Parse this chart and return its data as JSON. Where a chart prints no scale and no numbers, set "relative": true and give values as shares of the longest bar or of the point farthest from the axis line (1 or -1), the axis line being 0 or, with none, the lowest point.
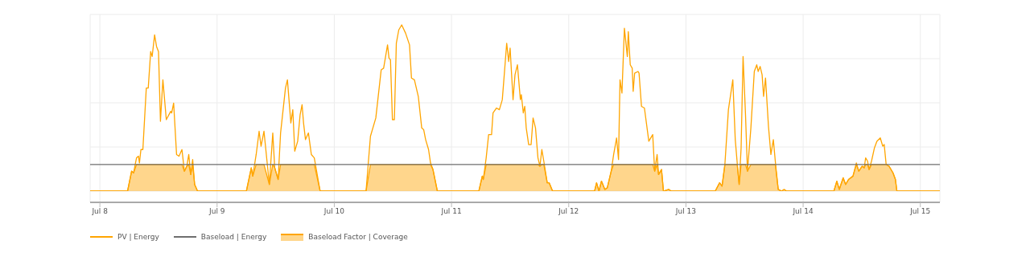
{
  "chart_data": {
    "type": "line",
    "relative": true,
    "grid": true,
    "legend": "bottom left",
    "marker": "none",
    "line_style": "solid",
    "xlim": [
      "--07-07T22:00",
      "--07-15T04:00"
    ],
    "xticks": [
      {
        "value": "--07-08",
        "label": "Jul 8"
      },
      {
        "value": "--07-09",
        "label": "Jul 9"
      },
      {
        "value": "--07-10",
        "label": "Jul 10"
      },
      {
        "value": "--07-11",
        "label": "Jul 11"
      },
      {
        "value": "--07-12",
        "label": "Jul 12"
      },
      {
        "value": "--07-13",
        "label": "Jul 13"
      },
      {
        "value": "--07-14",
        "label": "Jul 14"
      },
      {
        "value": "--07-15",
        "label": "Jul 15"
      }
    ],
    "x": [
      "--07-07T22:00",
      "--07-08T05:40",
      "--07-08T06:30",
      "--07-08T06:54",
      "--07-08T07:30",
      "--07-08T07:54",
      "--07-08T08:06",
      "--07-08T08:24",
      "--07-08T08:48",
      "--07-08T09:30",
      "--07-08T09:54",
      "--07-08T10:24",
      "--07-08T10:42",
      "--07-08T11:12",
      "--07-08T11:36",
      "--07-08T12:00",
      "--07-08T12:24",
      "--07-08T12:54",
      "--07-08T13:36",
      "--07-08T14:30",
      "--07-08T14:42",
      "--07-08T15:06",
      "--07-08T15:42",
      "--07-08T16:12",
      "--07-08T16:48",
      "--07-08T17:18",
      "--07-08T17:48",
      "--07-08T18:12",
      "--07-08T18:36",
      "--07-08T19:00",
      "--07-08T19:24",
      "--07-08T20:00",
      "--07-09T06:00",
      "--07-09T07:00",
      "--07-09T07:18",
      "--07-09T08:00",
      "--07-09T08:36",
      "--07-09T09:00",
      "--07-09T09:36",
      "--07-09T10:42",
      "--07-09T11:24",
      "--07-09T11:48",
      "--07-09T12:30",
      "--07-09T13:00",
      "--07-09T14:00",
      "--07-09T14:24",
      "--07-09T15:06",
      "--07-09T15:30",
      "--07-09T15:54",
      "--07-09T16:30",
      "--07-09T17:00",
      "--07-09T17:24",
      "--07-09T17:42",
      "--07-09T18:06",
      "--07-09T18:42",
      "--07-09T19:18",
      "--07-09T19:54",
      "--07-09T21:06",
      "--07-10T06:30",
      "--07-10T07:24",
      "--07-10T08:30",
      "--07-10T09:36",
      "--07-10T10:06",
      "--07-10T10:54",
      "--07-10T11:12",
      "--07-10T11:30",
      "--07-10T11:54",
      "--07-10T12:18",
      "--07-10T12:42",
      "--07-10T13:12",
      "--07-10T13:48",
      "--07-10T14:36",
      "--07-10T15:24",
      "--07-10T15:48",
      "--07-10T16:24",
      "--07-10T17:12",
      "--07-10T17:54",
      "--07-10T18:18",
      "--07-10T18:42",
      "--07-10T19:18",
      "--07-10T19:42",
      "--07-10T20:12",
      "--07-10T21:06",
      "--07-11T05:36",
      "--07-11T06:18",
      "--07-11T06:30",
      "--07-11T07:06",
      "--07-11T07:36",
      "--07-11T08:12",
      "--07-11T08:30",
      "--07-11T09:12",
      "--07-11T09:48",
      "--07-11T10:24",
      "--07-11T10:48",
      "--07-11T11:18",
      "--07-11T11:42",
      "--07-11T12:00",
      "--07-11T12:36",
      "--07-11T13:00",
      "--07-11T13:30",
      "--07-11T14:06",
      "--07-11T14:18",
      "--07-11T14:42",
      "--07-11T15:00",
      "--07-11T15:18",
      "--07-11T15:48",
      "--07-11T16:18",
      "--07-11T16:42",
      "--07-11T17:12",
      "--07-11T17:42",
      "--07-11T18:06",
      "--07-11T18:30",
      "--07-11T18:54",
      "--07-11T19:36",
      "--07-11T20:00",
      "--07-11T20:42",
      "--07-12T05:18",
      "--07-12T05:42",
      "--07-12T06:12",
      "--07-12T06:42",
      "--07-12T07:24",
      "--07-12T07:54",
      "--07-12T08:42",
      "--07-12T09:12",
      "--07-12T09:48",
      "--07-12T10:12",
      "--07-12T10:30",
      "--07-12T10:54",
      "--07-12T11:24",
      "--07-12T12:00",
      "--07-12T12:12",
      "--07-12T12:36",
      "--07-12T13:00",
      "--07-12T13:12",
      "--07-12T13:30",
      "--07-12T14:12",
      "--07-12T14:24",
      "--07-12T14:54",
      "--07-12T15:30",
      "--07-12T16:24",
      "--07-12T17:12",
      "--07-12T17:36",
      "--07-12T18:06",
      "--07-12T18:24",
      "--07-12T19:00",
      "--07-12T19:24",
      "--07-12T20:30",
      "--07-12T21:00",
      "--07-13T06:00",
      "--07-13T06:54",
      "--07-13T07:24",
      "--07-13T08:00",
      "--07-13T08:42",
      "--07-13T09:06",
      "--07-13T09:36",
      "--07-13T10:06",
      "--07-13T10:30",
      "--07-13T10:54",
      "--07-13T11:18",
      "--07-13T11:42",
      "--07-13T12:12",
      "--07-13T12:36",
      "--07-13T13:18",
      "--07-13T14:00",
      "--07-13T14:30",
      "--07-13T14:48",
      "--07-13T15:12",
      "--07-13T15:36",
      "--07-13T15:54",
      "--07-13T16:18",
      "--07-13T16:54",
      "--07-13T17:24",
      "--07-13T17:54",
      "--07-13T18:18",
      "--07-13T18:54",
      "--07-13T19:36",
      "--07-13T20:06",
      "--07-13T20:36",
      "--07-14T06:18",
      "--07-14T06:54",
      "--07-14T07:24",
      "--07-14T08:12",
      "--07-14T08:42",
      "--07-14T09:18",
      "--07-14T10:12",
      "--07-14T10:54",
      "--07-14T11:24",
      "--07-14T12:06",
      "--07-14T12:30",
      "--07-14T12:48",
      "--07-14T13:12",
      "--07-14T13:30",
      "--07-14T14:00",
      "--07-14T14:36",
      "--07-14T15:06",
      "--07-14T15:48",
      "--07-14T16:18",
      "--07-14T16:36",
      "--07-14T17:00",
      "--07-14T17:36",
      "--07-14T18:24",
      "--07-14T18:54",
      "--07-14T19:12",
      "--07-15T04:00"
    ],
    "series": [
      {
        "name": "PV | Energy",
        "color": "#ffa500",
        "values": [
          0,
          0,
          0.12,
          0.11,
          0.2,
          0.21,
          0.17,
          0.25,
          0.25,
          0.62,
          0.62,
          0.84,
          0.81,
          0.94,
          0.87,
          0.84,
          0.42,
          0.67,
          0.43,
          0.48,
          0.47,
          0.53,
          0.22,
          0.21,
          0.25,
          0.12,
          0.15,
          0.22,
          0.1,
          0.19,
          0.04,
          0,
          0,
          0.14,
          0.09,
          0.22,
          0.36,
          0.27,
          0.36,
          0.04,
          0.35,
          0.14,
          0.07,
          0.35,
          0.62,
          0.67,
          0.41,
          0.49,
          0.24,
          0.3,
          0.46,
          0.52,
          0.41,
          0.31,
          0.35,
          0.22,
          0.2,
          0,
          0,
          0.33,
          0.44,
          0.73,
          0.74,
          0.88,
          0.8,
          0.79,
          0.43,
          0.43,
          0.89,
          0.97,
          1.0,
          0.95,
          0.88,
          0.68,
          0.67,
          0.57,
          0.38,
          0.37,
          0.31,
          0.25,
          0.17,
          0.13,
          0,
          0,
          0.09,
          0.07,
          0.2,
          0.34,
          0.34,
          0.47,
          0.5,
          0.49,
          0.55,
          0.7,
          0.89,
          0.78,
          0.86,
          0.55,
          0.7,
          0.76,
          0.55,
          0.58,
          0.47,
          0.51,
          0.38,
          0.28,
          0.28,
          0.44,
          0.38,
          0.2,
          0.15,
          0.25,
          0.18,
          0.05,
          0.05,
          0,
          0,
          0.05,
          0,
          0.06,
          0.01,
          0.02,
          0.12,
          0.22,
          0.32,
          0.19,
          0.67,
          0.59,
          0.98,
          0.81,
          0.96,
          0.76,
          0.74,
          0.6,
          0.71,
          0.72,
          0.71,
          0.51,
          0.5,
          0.3,
          0.34,
          0.12,
          0.22,
          0.1,
          0.13,
          0,
          0.01,
          0,
          0,
          0.05,
          0.03,
          0.17,
          0.49,
          0.57,
          0.67,
          0.31,
          0.17,
          0.04,
          0.26,
          0.81,
          0.46,
          0.12,
          0.38,
          0.72,
          0.76,
          0.72,
          0.75,
          0.7,
          0.57,
          0.68,
          0.39,
          0.22,
          0.31,
          0.18,
          0.01,
          0,
          0.01,
          0,
          0,
          0.06,
          0.01,
          0.08,
          0.04,
          0.07,
          0.09,
          0.17,
          0.12,
          0.15,
          0.14,
          0.2,
          0.18,
          0.13,
          0.18,
          0.26,
          0.3,
          0.32,
          0.27,
          0.28,
          0.16,
          0.15,
          0.11,
          0.07,
          0,
          0
        ]
      },
      {
        "name": "Baseload | Energy",
        "color": "#6e6e6e",
        "x": [
          "--07-07T22:00",
          "--07-15T04:00"
        ],
        "values": [
          0.16,
          0.16
        ]
      },
      {
        "name": "Baseload Factor | Coverage",
        "type": "area",
        "color": "#ffa500",
        "values": [
          0,
          0,
          0.12,
          0.11,
          0.16,
          0.16,
          0.16,
          0.16,
          0.16,
          0.16,
          0.16,
          0.16,
          0.16,
          0.16,
          0.16,
          0.16,
          0.16,
          0.16,
          0.16,
          0.16,
          0.16,
          0.16,
          0.16,
          0.16,
          0.16,
          0.12,
          0.15,
          0.16,
          0.1,
          0.16,
          0.04,
          0,
          0,
          0.14,
          0.09,
          0.16,
          0.16,
          0.16,
          0.16,
          0.04,
          0.16,
          0.14,
          0.07,
          0.16,
          0.16,
          0.16,
          0.16,
          0.16,
          0.16,
          0.16,
          0.16,
          0.16,
          0.16,
          0.16,
          0.16,
          0.16,
          0.16,
          0,
          0,
          0.16,
          0.16,
          0.16,
          0.16,
          0.16,
          0.16,
          0.16,
          0.16,
          0.16,
          0.16,
          0.16,
          0.16,
          0.16,
          0.16,
          0.16,
          0.16,
          0.16,
          0.16,
          0.16,
          0.16,
          0.16,
          0.16,
          0.13,
          0,
          0,
          0.09,
          0.07,
          0.16,
          0.16,
          0.16,
          0.16,
          0.16,
          0.16,
          0.16,
          0.16,
          0.16,
          0.16,
          0.16,
          0.16,
          0.16,
          0.16,
          0.16,
          0.16,
          0.16,
          0.16,
          0.16,
          0.16,
          0.16,
          0.16,
          0.16,
          0.16,
          0.15,
          0.16,
          0.16,
          0.05,
          0.05,
          0,
          0,
          0.05,
          0,
          0.06,
          0.01,
          0.02,
          0.12,
          0.16,
          0.16,
          0.16,
          0.16,
          0.16,
          0.16,
          0.16,
          0.16,
          0.16,
          0.16,
          0.16,
          0.16,
          0.16,
          0.16,
          0.16,
          0.16,
          0.16,
          0.16,
          0.12,
          0.16,
          0.1,
          0.13,
          0,
          0.01,
          0,
          0,
          0.05,
          0.03,
          0.16,
          0.16,
          0.16,
          0.16,
          0.16,
          0.16,
          0.04,
          0.16,
          0.16,
          0.16,
          0.12,
          0.16,
          0.16,
          0.16,
          0.16,
          0.16,
          0.16,
          0.16,
          0.16,
          0.16,
          0.16,
          0.16,
          0.16,
          0.01,
          0,
          0.01,
          0,
          0,
          0.06,
          0.01,
          0.08,
          0.04,
          0.07,
          0.09,
          0.16,
          0.12,
          0.15,
          0.14,
          0.16,
          0.16,
          0.13,
          0.16,
          0.16,
          0.16,
          0.16,
          0.16,
          0.16,
          0.16,
          0.15,
          0.11,
          0.07,
          0,
          0
        ]
      }
    ]
  }
}
